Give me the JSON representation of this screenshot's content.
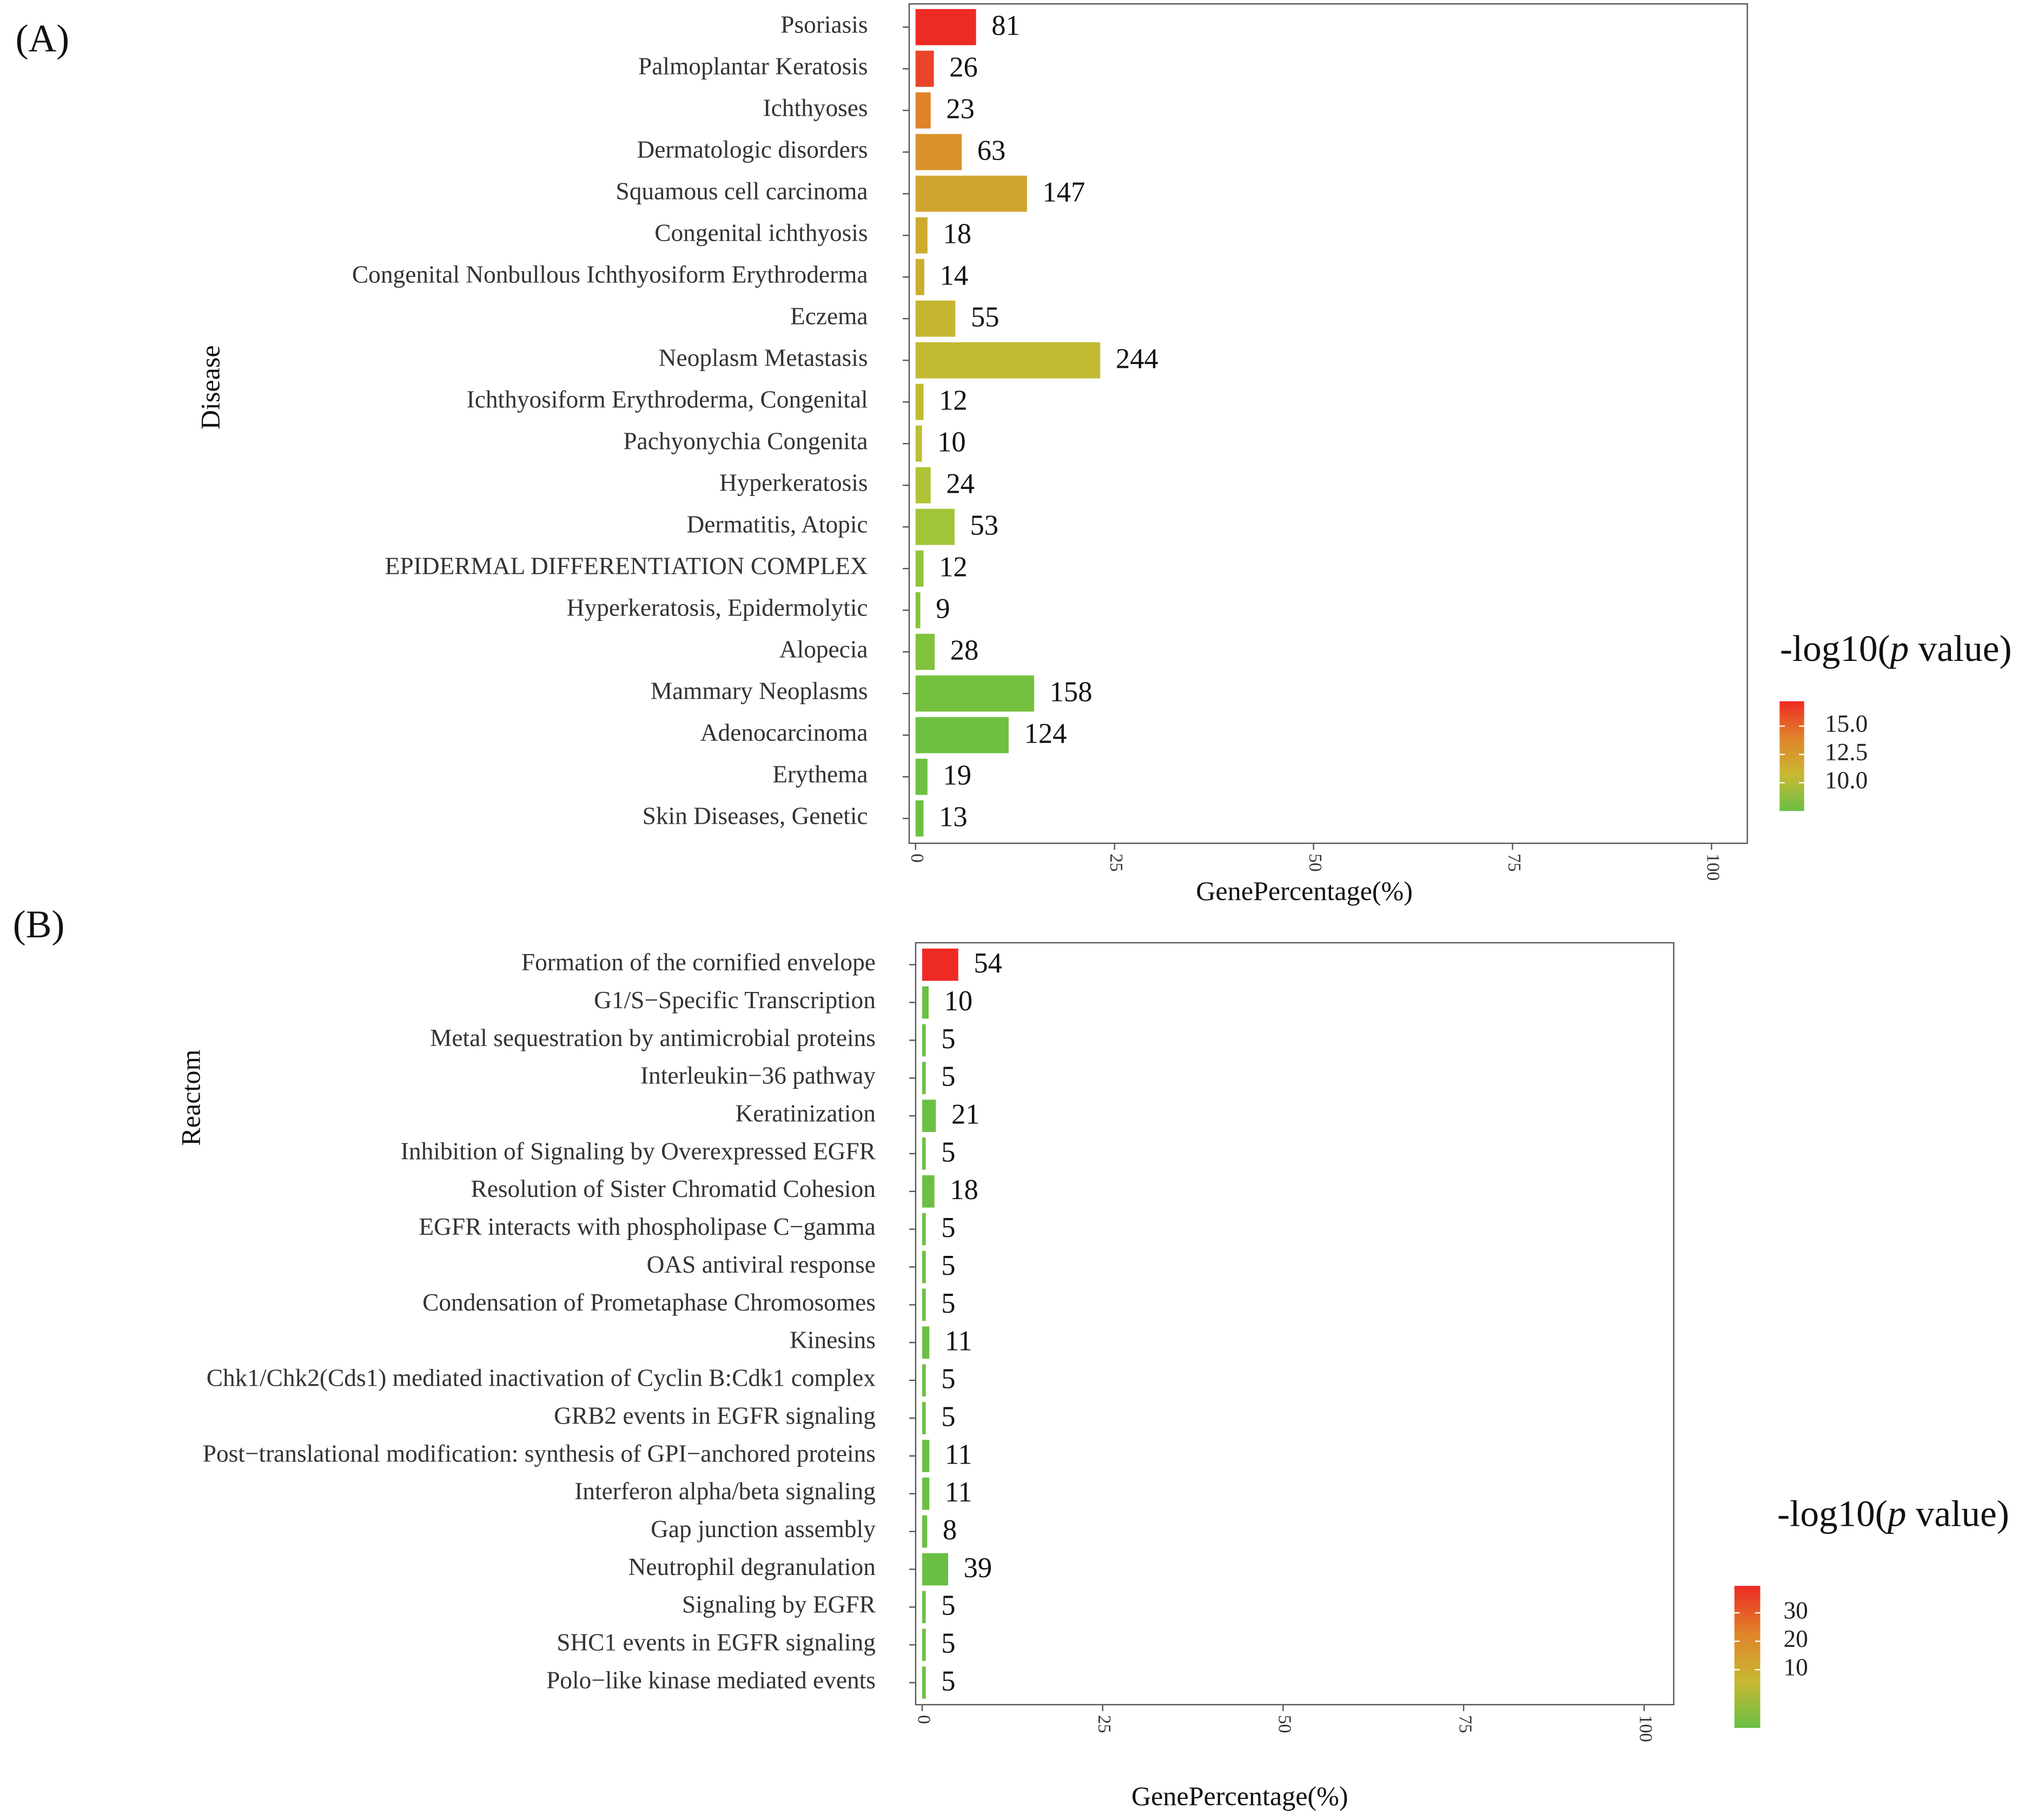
{
  "chart_data": [
    {
      "type": "bar",
      "orientation": "horizontal",
      "panel_label": "(A)",
      "y_label": "Disease",
      "x_label": "GenePercentage(%)",
      "categories": [
        "Psoriasis",
        "Palmoplantar Keratosis",
        "Ichthyoses",
        "Dermatologic disorders",
        "Squamous cell carcinoma",
        "Congenital ichthyosis",
        "Congenital Nonbullous Ichthyosiform Erythroderma",
        "Eczema",
        "Neoplasm Metastasis",
        "Ichthyosiform Erythroderma, Congenital",
        "Pachyonychia Congenita",
        "Hyperkeratosis",
        "Dermatitis, Atopic",
        "EPIDERMAL DIFFERENTIATION COMPLEX",
        "Hyperkeratosis, Epidermolytic",
        "Alopecia",
        "Mammary Neoplasms",
        "Adenocarcinoma",
        "Erythema",
        "Skin Diseases, Genetic"
      ],
      "values": [
        7.6,
        2.3,
        1.9,
        5.8,
        14.0,
        1.5,
        1.1,
        5.0,
        23.2,
        1.0,
        0.8,
        1.9,
        4.9,
        1.0,
        0.6,
        2.4,
        14.9,
        11.7,
        1.5,
        1.0
      ],
      "gene_counts": [
        "81",
        "26",
        "23",
        "63",
        "147",
        "18",
        "14",
        "55",
        "244",
        "12",
        "10",
        "24",
        "53",
        "12",
        "9",
        "28",
        "158",
        "124",
        "19",
        "13"
      ],
      "colors": [
        "#ee2a24",
        "#e8452a",
        "#e0832a",
        "#db912b",
        "#d0a52e",
        "#cdab2f",
        "#cbae2f",
        "#c6b531",
        "#c2ba32",
        "#bfbd33",
        "#bcbf34",
        "#b0c336",
        "#a1c538",
        "#92c43a",
        "#86c33c",
        "#80c23d",
        "#74c13f",
        "#6fc040",
        "#6dc041",
        "#6bbf41"
      ],
      "xlim": [
        -0.8,
        104.5
      ],
      "xticks": [
        0,
        25,
        50,
        75,
        100
      ],
      "legend_title": [
        "-log10(",
        "p",
        " value)"
      ],
      "colorbar": {
        "lim": [
          7.5,
          17.2
        ],
        "colors": [
          "#6abf45",
          "#c9b832",
          "#e0832a",
          "#ee2a24"
        ],
        "ticks": [
          {
            "value": 15,
            "label": "15.0"
          },
          {
            "value": 12.5,
            "label": "12.5"
          },
          {
            "value": 10,
            "label": "10.0"
          }
        ]
      }
    },
    {
      "type": "bar",
      "orientation": "horizontal",
      "panel_label": "(B)",
      "y_label": "Reactom",
      "x_label": "GenePercentage(%)",
      "categories": [
        "Formation of the cornified envelope",
        "G1/S−Specific Transcription",
        "Metal sequestration by antimicrobial proteins",
        "Interleukin−36 pathway",
        "Keratinization",
        "Inhibition of Signaling by Overexpressed EGFR",
        "Resolution of Sister Chromatid Cohesion",
        "EGFR interacts with phospholipase C−gamma",
        "OAS antiviral response",
        "Condensation of Prometaphase Chromosomes",
        "Kinesins",
        "Chk1/Chk2(Cds1) mediated inactivation of Cyclin B:Cdk1 complex",
        "GRB2 events in EGFR signaling",
        "Post−translational modification: synthesis of GPI−anchored proteins",
        "Interferon alpha/beta signaling",
        "Gap junction assembly",
        "Neutrophil degranulation",
        "Signaling by EGFR",
        "SHC1 events in EGFR signaling",
        "Polo−like kinase mediated events"
      ],
      "values": [
        5.0,
        0.9,
        0.5,
        0.5,
        1.9,
        0.5,
        1.7,
        0.5,
        0.5,
        0.5,
        1.0,
        0.5,
        0.5,
        1.0,
        1.0,
        0.7,
        3.6,
        0.5,
        0.5,
        0.5
      ],
      "gene_counts": [
        "54",
        "10",
        "5",
        "5",
        "21",
        "5",
        "18",
        "5",
        "5",
        "5",
        "11",
        "5",
        "5",
        "11",
        "11",
        "8",
        "39",
        "5",
        "5",
        "5"
      ],
      "colors": [
        "#ee2a24",
        "#6cbf44",
        "#6dbf45",
        "#6dbf45",
        "#6cbf44",
        "#6dbf45",
        "#6cbf44",
        "#6dbf45",
        "#6dbf45",
        "#6dbf45",
        "#6cbf44",
        "#6dbf45",
        "#6dbf45",
        "#6cbf44",
        "#6cbf44",
        "#6dbf45",
        "#6abf43",
        "#6dbf45",
        "#6dbf45",
        "#6dbf45"
      ],
      "xlim": [
        -0.9,
        104.1
      ],
      "xticks": [
        0,
        25,
        50,
        75,
        100
      ],
      "legend_title": [
        "-log10(",
        "p",
        " value)"
      ],
      "colorbar": {
        "lim": [
          -10.5,
          39.5
        ],
        "colors": [
          "#6abf45",
          "#c9b832",
          "#e0832a",
          "#ee2a24"
        ],
        "ticks": [
          30,
          20,
          10
        ]
      }
    }
  ]
}
